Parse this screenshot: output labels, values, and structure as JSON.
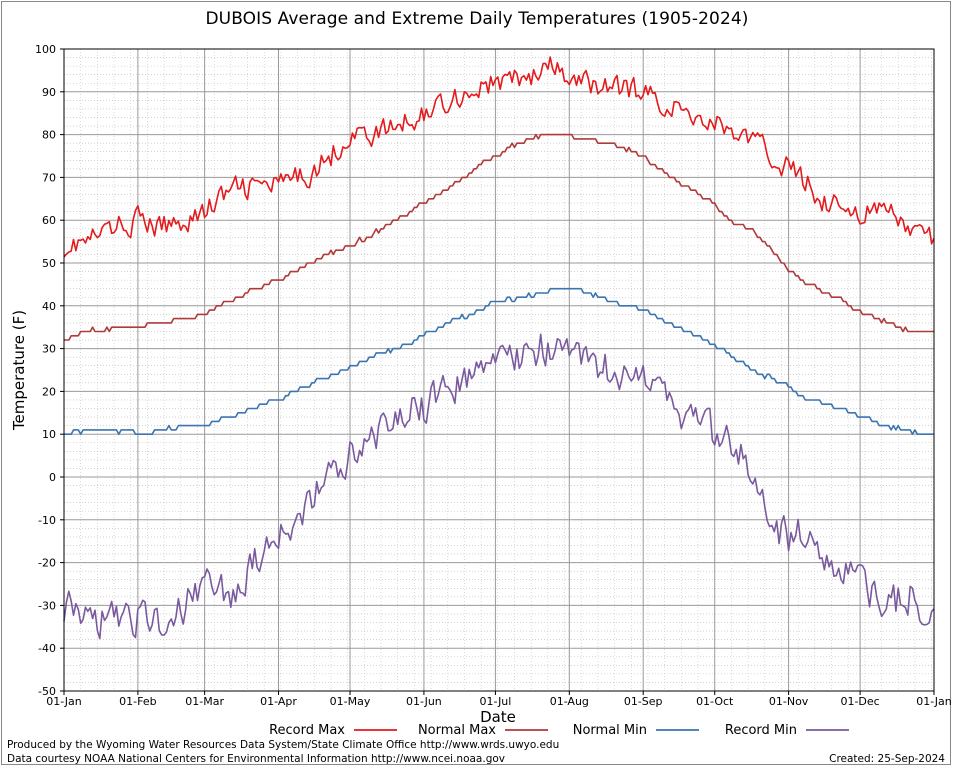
{
  "chart_data": {
    "type": "line",
    "title": "DUBOIS Average and Extreme Daily Temperatures (1905-2024)",
    "xlabel": "Date",
    "ylabel": "Temperature (F)",
    "ylim": [
      -50,
      100
    ],
    "yticks": [
      "100",
      "90",
      "80",
      "70",
      "60",
      "50",
      "40",
      "30",
      "20",
      "10",
      "0",
      "-10",
      "-20",
      "-30",
      "-40",
      "-50"
    ],
    "xticks": [
      "01-Jan",
      "01-Feb",
      "01-Mar",
      "01-Apr",
      "01-May",
      "01-Jun",
      "01-Jul",
      "01-Aug",
      "01-Sep",
      "01-Oct",
      "01-Nov",
      "01-Dec",
      "01-Jan"
    ],
    "xtick_days": [
      0,
      31,
      59,
      90,
      120,
      151,
      181,
      212,
      243,
      273,
      304,
      334,
      365
    ],
    "grid": true,
    "legend_position": "bottom",
    "series": [
      {
        "name": "Record Max",
        "color": "#e41a1c",
        "day": [
          0,
          10,
          20,
          31,
          40,
          50,
          59,
          70,
          80,
          90,
          100,
          110,
          120,
          130,
          140,
          151,
          160,
          170,
          181,
          190,
          200,
          205,
          212,
          220,
          230,
          243,
          250,
          260,
          273,
          280,
          290,
          297,
          304,
          310,
          320,
          330,
          334,
          345,
          355,
          365
        ],
        "values": [
          54,
          55,
          58,
          60,
          58,
          60,
          62,
          67,
          68,
          68,
          70,
          74,
          80,
          80,
          82,
          85,
          88,
          90,
          92,
          93,
          94,
          96,
          92,
          92,
          91,
          90,
          88,
          85,
          83,
          81,
          78,
          75,
          72,
          70,
          64,
          63,
          62,
          62,
          58,
          55
        ],
        "noise": 4
      },
      {
        "name": "Normal Max",
        "color": "#b03a3a",
        "day": [
          0,
          10,
          20,
          31,
          40,
          50,
          59,
          70,
          80,
          90,
          100,
          110,
          120,
          130,
          140,
          151,
          160,
          170,
          181,
          190,
          200,
          205,
          212,
          220,
          230,
          243,
          250,
          260,
          273,
          280,
          290,
          297,
          304,
          310,
          320,
          330,
          334,
          345,
          355,
          365
        ],
        "values": [
          32,
          34,
          35,
          35,
          36,
          37,
          38,
          41,
          44,
          46,
          49,
          52,
          54,
          57,
          60,
          64,
          67,
          71,
          75,
          78,
          80,
          80,
          80,
          79,
          78,
          75,
          72,
          68,
          64,
          60,
          57,
          53,
          48,
          46,
          43,
          40,
          39,
          36,
          34,
          34
        ],
        "noise": 0.6
      },
      {
        "name": "Normal Min",
        "color": "#3a75b0",
        "day": [
          0,
          10,
          20,
          31,
          40,
          50,
          59,
          70,
          80,
          90,
          100,
          110,
          120,
          130,
          140,
          151,
          160,
          170,
          181,
          190,
          200,
          205,
          212,
          220,
          230,
          243,
          250,
          260,
          273,
          280,
          290,
          297,
          304,
          310,
          320,
          330,
          334,
          345,
          355,
          365
        ],
        "values": [
          10,
          11,
          11,
          10,
          11,
          12,
          12,
          14,
          16,
          18,
          21,
          23,
          26,
          28,
          30,
          33,
          36,
          38,
          41,
          42,
          43,
          44,
          44,
          43,
          41,
          39,
          37,
          34,
          31,
          28,
          25,
          23,
          21,
          19,
          17,
          15,
          14,
          12,
          11,
          10
        ],
        "noise": 0.6
      },
      {
        "name": "Record Min",
        "color": "#7a5a9e",
        "day": [
          0,
          10,
          20,
          31,
          40,
          50,
          59,
          70,
          80,
          90,
          100,
          110,
          120,
          130,
          140,
          151,
          160,
          170,
          181,
          190,
          200,
          205,
          212,
          220,
          230,
          243,
          250,
          260,
          273,
          280,
          290,
          297,
          304,
          310,
          320,
          330,
          334,
          345,
          355,
          365
        ],
        "values": [
          -30,
          -35,
          -32,
          -33,
          -33,
          -30,
          -25,
          -28,
          -20,
          -12,
          -8,
          0,
          6,
          10,
          14,
          16,
          20,
          24,
          27,
          28,
          30,
          31,
          30,
          26,
          25,
          24,
          20,
          15,
          10,
          8,
          0,
          -10,
          -15,
          -12,
          -20,
          -22,
          -25,
          -30,
          -28,
          -35
        ],
        "noise": 6
      }
    ]
  },
  "credits": {
    "produced_by": "Produced by the Wyoming Water Resources Data System/State Climate Office http://www.wrds.uwyo.edu",
    "data_courtesy": "Data courtesy NOAA National Centers for Environmental Information http://www.ncei.noaa.gov",
    "created": "Created:  25-Sep-2024"
  }
}
